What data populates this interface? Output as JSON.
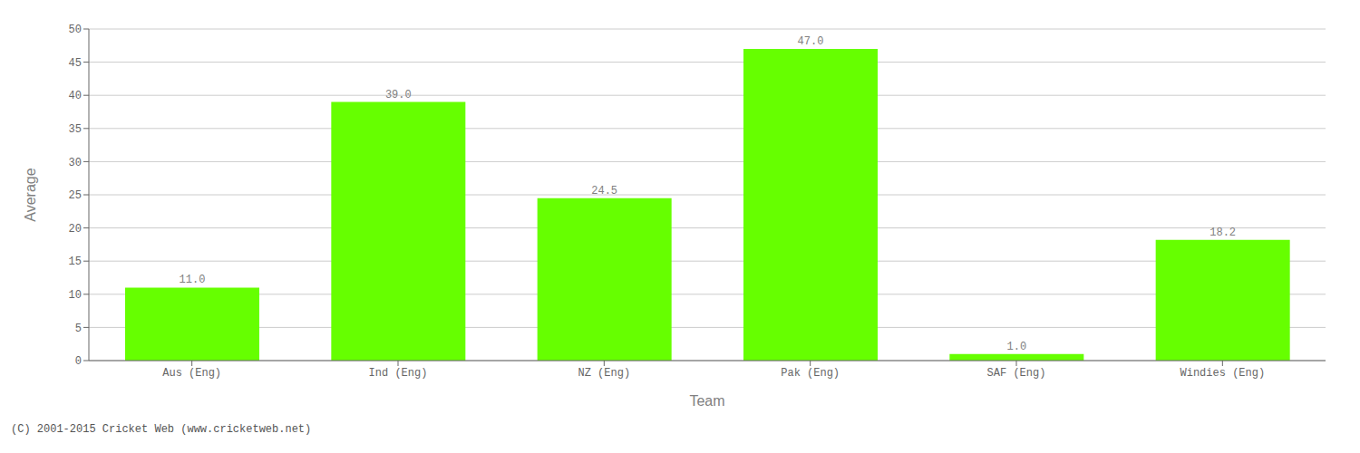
{
  "chart_data": {
    "type": "bar",
    "categories": [
      "Aus (Eng)",
      "Ind (Eng)",
      "NZ (Eng)",
      "Pak (Eng)",
      "SAF (Eng)",
      "Windies (Eng)"
    ],
    "values": [
      11.0,
      39.0,
      24.5,
      47.0,
      1.0,
      18.2
    ],
    "value_labels": [
      "11.0",
      "39.0",
      "24.5",
      "47.0",
      "1.0",
      "18.2"
    ],
    "data_labels": true,
    "color": "#66ff00",
    "x_label": "Team",
    "y_label": "Average",
    "ylim": [
      0,
      50
    ],
    "yticks": [
      0,
      5,
      10,
      15,
      20,
      25,
      30,
      35,
      40,
      45,
      50
    ],
    "grid": true,
    "annotations": [
      "(C) 2001-2015 Cricket Web (www.cricketweb.net)"
    ]
  }
}
